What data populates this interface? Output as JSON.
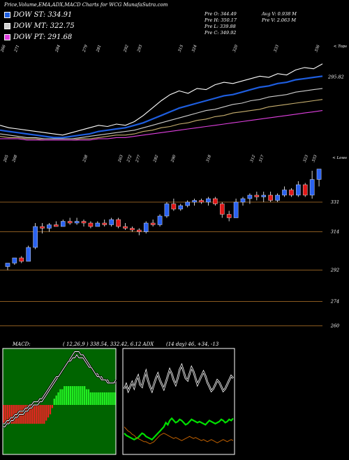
{
  "header": {
    "title": "Price,Volume,EMA,ADX,MACD Charts for WCG MunafaSutra.com",
    "legend": [
      {
        "label": "DOW ST: 334.91",
        "color": "#1e5ee0"
      },
      {
        "label": "DOW MT: 322.75",
        "color": "#cfcfcf"
      },
      {
        "label": "DOW PT: 291.68",
        "color": "#e040e0"
      }
    ],
    "stats": [
      {
        "text": "Pre  O: 344.49"
      },
      {
        "text": "Pre  H: 350.17"
      },
      {
        "text": "Pre  L: 339.88"
      },
      {
        "text": "Pre  C: 349.92"
      },
      {
        "text": "Avg V: 0.938  M"
      },
      {
        "text": "Pre  V: 2.063 M"
      }
    ]
  },
  "indicators": {
    "macd": "MACD:",
    "macd_values": "( 12,26,9 ) 338.54,  332.42, 6.12 ADX",
    "adx_values": "(14  day) 46,  +34,  -13"
  },
  "chart_data": [
    {
      "type": "line",
      "panel": "ema",
      "top_ticks": [
        "266",
        "271",
        "",
        "",
        "284",
        "",
        "279",
        "281",
        "",
        "292",
        "293",
        "",
        "",
        "315",
        "324",
        "",
        "",
        "320",
        "",
        "",
        "333",
        "",
        "",
        "336"
      ],
      "side_label": "< Tops",
      "last_value_label": "295.82",
      "series": [
        {
          "color": "#ffffff",
          "values": [
            300,
            298,
            297,
            296,
            295,
            294,
            293,
            292,
            294,
            296,
            298,
            300,
            299,
            301,
            300,
            303,
            308,
            314,
            320,
            325,
            328,
            326,
            330,
            329,
            333,
            335,
            334,
            336,
            338,
            340,
            339,
            342,
            341,
            345,
            347,
            346,
            350
          ]
        },
        {
          "color": "#1e5ee0",
          "values": [
            296,
            295,
            294,
            293,
            292,
            291,
            290,
            290,
            291,
            292,
            293,
            295,
            296,
            297,
            298,
            300,
            302,
            305,
            308,
            311,
            314,
            316,
            318,
            320,
            322,
            324,
            325,
            327,
            329,
            331,
            332,
            334,
            335,
            337,
            338,
            339,
            340
          ]
        },
        {
          "color": "#cfcfcf",
          "values": [
            293,
            292,
            291,
            290,
            290,
            289,
            289,
            289,
            289,
            290,
            291,
            292,
            293,
            294,
            295,
            296,
            298,
            300,
            302,
            304,
            306,
            308,
            310,
            312,
            313,
            315,
            317,
            318,
            320,
            321,
            323,
            324,
            325,
            327,
            328,
            329,
            330
          ]
        },
        {
          "color": "#c8b070",
          "values": [
            291,
            290,
            290,
            289,
            289,
            288,
            288,
            288,
            288,
            289,
            289,
            290,
            291,
            292,
            292,
            293,
            295,
            296,
            298,
            299,
            301,
            302,
            304,
            305,
            307,
            308,
            310,
            311,
            312,
            313,
            315,
            316,
            317,
            318,
            319,
            320,
            321
          ]
        },
        {
          "color": "#e040e0",
          "values": [
            289,
            289,
            289,
            288,
            288,
            288,
            288,
            288,
            288,
            288,
            288,
            289,
            289,
            290,
            290,
            291,
            292,
            293,
            294,
            295,
            296,
            297,
            298,
            299,
            300,
            301,
            302,
            303,
            304,
            305,
            306,
            307,
            308,
            309,
            310,
            311,
            312
          ]
        }
      ]
    },
    {
      "type": "candlestick",
      "panel": "price",
      "bottom_ticks": [
        "265",
        "268",
        "",
        "",
        "",
        "",
        "",
        "",
        "",
        "258",
        "",
        "",
        "",
        "263",
        "272",
        "277",
        "",
        "282",
        "",
        "290",
        "",
        "",
        "",
        "318",
        "",
        "",
        "",
        "",
        "312",
        "317",
        "",
        "",
        "",
        "",
        "323",
        "333"
      ],
      "side_label": "< Lows",
      "y_ticks": [
        331,
        314,
        292,
        274,
        260
      ],
      "ylim": [
        255,
        355
      ],
      "candles": [
        {
          "o": 294,
          "h": 296,
          "l": 292,
          "c": 296,
          "up": true
        },
        {
          "o": 296,
          "h": 299,
          "l": 295,
          "c": 299,
          "up": true
        },
        {
          "o": 299,
          "h": 300,
          "l": 296,
          "c": 297,
          "up": false
        },
        {
          "o": 297,
          "h": 306,
          "l": 297,
          "c": 305,
          "up": true
        },
        {
          "o": 305,
          "h": 319,
          "l": 304,
          "c": 317,
          "up": true
        },
        {
          "o": 317,
          "h": 319,
          "l": 313,
          "c": 316,
          "up": false
        },
        {
          "o": 316,
          "h": 319,
          "l": 314,
          "c": 318,
          "up": true
        },
        {
          "o": 318,
          "h": 320,
          "l": 317,
          "c": 317,
          "up": false
        },
        {
          "o": 317,
          "h": 321,
          "l": 317,
          "c": 320,
          "up": true
        },
        {
          "o": 320,
          "h": 322,
          "l": 318,
          "c": 319,
          "up": false
        },
        {
          "o": 319,
          "h": 322,
          "l": 318,
          "c": 320,
          "up": true
        },
        {
          "o": 320,
          "h": 321,
          "l": 317,
          "c": 319,
          "up": false
        },
        {
          "o": 319,
          "h": 320,
          "l": 316,
          "c": 317,
          "up": false
        },
        {
          "o": 317,
          "h": 320,
          "l": 317,
          "c": 319,
          "up": true
        },
        {
          "o": 319,
          "h": 321,
          "l": 317,
          "c": 318,
          "up": false
        },
        {
          "o": 318,
          "h": 322,
          "l": 317,
          "c": 321,
          "up": true
        },
        {
          "o": 321,
          "h": 322,
          "l": 316,
          "c": 317,
          "up": false
        },
        {
          "o": 317,
          "h": 319,
          "l": 315,
          "c": 316,
          "up": false
        },
        {
          "o": 316,
          "h": 317,
          "l": 314,
          "c": 315,
          "up": false
        },
        {
          "o": 315,
          "h": 316,
          "l": 312,
          "c": 314,
          "up": false
        },
        {
          "o": 314,
          "h": 320,
          "l": 313,
          "c": 319,
          "up": true
        },
        {
          "o": 319,
          "h": 321,
          "l": 317,
          "c": 318,
          "up": false
        },
        {
          "o": 318,
          "h": 324,
          "l": 317,
          "c": 323,
          "up": true
        },
        {
          "o": 323,
          "h": 331,
          "l": 322,
          "c": 330,
          "up": true
        },
        {
          "o": 330,
          "h": 333,
          "l": 326,
          "c": 327,
          "up": false
        },
        {
          "o": 327,
          "h": 330,
          "l": 326,
          "c": 329,
          "up": true
        },
        {
          "o": 329,
          "h": 332,
          "l": 328,
          "c": 331,
          "up": true
        },
        {
          "o": 331,
          "h": 333,
          "l": 329,
          "c": 332,
          "up": true
        },
        {
          "o": 332,
          "h": 333,
          "l": 330,
          "c": 331,
          "up": false
        },
        {
          "o": 331,
          "h": 334,
          "l": 329,
          "c": 333,
          "up": true
        },
        {
          "o": 333,
          "h": 334,
          "l": 329,
          "c": 330,
          "up": false
        },
        {
          "o": 330,
          "h": 331,
          "l": 322,
          "c": 324,
          "up": false
        },
        {
          "o": 324,
          "h": 326,
          "l": 320,
          "c": 322,
          "up": false
        },
        {
          "o": 322,
          "h": 333,
          "l": 322,
          "c": 331,
          "up": true
        },
        {
          "o": 331,
          "h": 334,
          "l": 329,
          "c": 333,
          "up": true
        },
        {
          "o": 333,
          "h": 336,
          "l": 330,
          "c": 335,
          "up": true
        },
        {
          "o": 335,
          "h": 337,
          "l": 332,
          "c": 334,
          "up": false
        },
        {
          "o": 334,
          "h": 337,
          "l": 331,
          "c": 335,
          "up": true
        },
        {
          "o": 335,
          "h": 337,
          "l": 331,
          "c": 332,
          "up": false
        },
        {
          "o": 332,
          "h": 336,
          "l": 331,
          "c": 335,
          "up": true
        },
        {
          "o": 335,
          "h": 340,
          "l": 334,
          "c": 338,
          "up": true
        },
        {
          "o": 338,
          "h": 339,
          "l": 334,
          "c": 335,
          "up": false
        },
        {
          "o": 335,
          "h": 343,
          "l": 334,
          "c": 341,
          "up": true
        },
        {
          "o": 341,
          "h": 342,
          "l": 334,
          "c": 335,
          "up": false
        },
        {
          "o": 335,
          "h": 349,
          "l": 333,
          "c": 344,
          "up": true
        },
        {
          "o": 344,
          "h": 350,
          "l": 340,
          "c": 350,
          "up": true
        }
      ]
    },
    {
      "type": "bar",
      "panel": "macd",
      "histogram": [
        -6,
        -6,
        -6,
        -6,
        -6,
        -6,
        -6,
        -6,
        -6,
        -6,
        -6,
        -6,
        -6,
        -6,
        -6,
        -6,
        -6,
        -6,
        -6,
        -6,
        -6,
        -5,
        -4,
        -3,
        -1,
        2,
        3,
        4,
        5,
        5,
        6,
        6,
        6,
        6,
        6,
        6,
        6,
        6,
        6,
        6,
        6,
        5,
        5,
        4,
        4,
        4,
        4,
        4,
        4,
        4,
        4,
        4,
        4,
        4,
        4,
        4
      ],
      "macd_line": [
        -6,
        -6,
        -5,
        -5,
        -4,
        -4,
        -3,
        -3,
        -2,
        -2,
        -2,
        -1,
        -1,
        0,
        0,
        1,
        1,
        1,
        2,
        2,
        3,
        4,
        5,
        6,
        7,
        8,
        9,
        9,
        10,
        11,
        12,
        13,
        14,
        14,
        15,
        15,
        16,
        15,
        15,
        15,
        14,
        13,
        12,
        12,
        11,
        10,
        9,
        9,
        8,
        8,
        8,
        7,
        7,
        7,
        7,
        8
      ],
      "signal_line": [
        -7,
        -7,
        -6,
        -6,
        -5,
        -5,
        -4,
        -4,
        -3,
        -3,
        -3,
        -2,
        -2,
        -1,
        -1,
        0,
        0,
        0,
        1,
        1,
        2,
        3,
        4,
        5,
        6,
        7,
        8,
        9,
        10,
        11,
        12,
        13,
        14,
        15,
        16,
        17,
        17,
        17,
        16,
        16,
        15,
        14,
        13,
        12,
        11,
        10,
        10,
        9,
        9,
        8,
        8,
        8,
        7,
        7,
        7,
        7
      ]
    },
    {
      "type": "line",
      "panel": "adx",
      "series": [
        {
          "name": "ADX",
          "color": "#ffffff",
          "values": [
            62,
            66,
            60,
            64,
            68,
            63,
            70,
            74,
            66,
            64,
            72,
            78,
            70,
            64,
            60,
            66,
            72,
            76,
            70,
            66,
            62,
            68,
            74,
            80,
            76,
            70,
            66,
            72,
            80,
            84,
            78,
            72,
            70,
            76,
            82,
            78,
            72,
            66,
            70,
            74,
            78,
            74,
            68,
            64,
            60,
            62,
            66,
            70,
            68,
            64,
            60,
            62,
            66,
            70,
            74,
            72
          ]
        },
        {
          "name": "+DI",
          "color": "#00e000",
          "values": [
            20,
            18,
            17,
            16,
            15,
            14,
            15,
            16,
            18,
            20,
            19,
            17,
            16,
            15,
            14,
            16,
            18,
            20,
            22,
            24,
            26,
            30,
            28,
            32,
            34,
            32,
            30,
            31,
            33,
            32,
            30,
            28,
            29,
            31,
            33,
            32,
            31,
            30,
            31,
            30,
            29,
            28,
            30,
            32,
            31,
            30,
            29,
            30,
            31,
            33,
            32,
            30,
            31,
            33,
            32,
            34
          ]
        },
        {
          "name": "-DI",
          "color": "#c06000",
          "values": [
            26,
            24,
            22,
            21,
            19,
            18,
            16,
            15,
            14,
            13,
            12,
            12,
            11,
            10,
            11,
            12,
            14,
            16,
            18,
            19,
            20,
            19,
            18,
            17,
            16,
            15,
            16,
            15,
            14,
            13,
            14,
            15,
            16,
            17,
            16,
            15,
            16,
            15,
            14,
            13,
            14,
            13,
            12,
            13,
            14,
            13,
            12,
            11,
            12,
            13,
            14,
            13,
            12,
            13,
            14,
            13
          ]
        }
      ]
    }
  ]
}
